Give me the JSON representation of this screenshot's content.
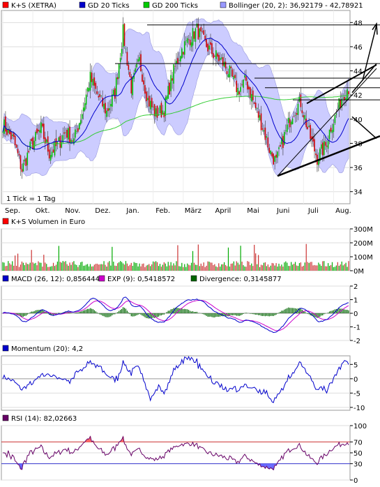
{
  "chart_data": [
    {
      "type": "candlestick",
      "legend": [
        {
          "label": "K+S (XETRA)",
          "color": "#ff0000"
        },
        {
          "label": "GD 20 Ticks",
          "color": "#0000cc"
        },
        {
          "label": "GD 200 Ticks",
          "color": "#00cc00"
        },
        {
          "label": "Bollinger (20, 2): 36,92179 - 42,78921",
          "color": "#9999ff"
        }
      ],
      "months": [
        "Sep.",
        "Okt.",
        "Nov.",
        "Dez.",
        "Jan.",
        "Feb.",
        "März",
        "April",
        "Mai",
        "Juni",
        "Juli",
        "Aug."
      ],
      "yticks": [
        "34",
        "36",
        "38",
        "40",
        "42",
        "44",
        "46",
        "48"
      ],
      "ylim": [
        33,
        49
      ],
      "note": "1 Tick = 1 Tag",
      "close_anchors": [
        [
          0,
          39.6
        ],
        [
          8,
          38.2
        ],
        [
          14,
          35.8
        ],
        [
          20,
          37.6
        ],
        [
          28,
          39.2
        ],
        [
          34,
          37.2
        ],
        [
          40,
          37.8
        ],
        [
          46,
          39.0
        ],
        [
          52,
          38.2
        ],
        [
          58,
          40.6
        ],
        [
          64,
          43.4
        ],
        [
          70,
          41.8
        ],
        [
          76,
          40.6
        ],
        [
          82,
          42.2
        ],
        [
          88,
          47.2
        ],
        [
          94,
          42.6
        ],
        [
          100,
          44.8
        ],
        [
          106,
          41.6
        ],
        [
          112,
          40.4
        ],
        [
          118,
          40.8
        ],
        [
          124,
          43.6
        ],
        [
          130,
          45.6
        ],
        [
          136,
          46.6
        ],
        [
          142,
          47.4
        ],
        [
          148,
          46.2
        ],
        [
          154,
          45.4
        ],
        [
          160,
          44.8
        ],
        [
          166,
          43.8
        ],
        [
          172,
          42.4
        ],
        [
          178,
          43.2
        ],
        [
          184,
          41.2
        ],
        [
          190,
          39.4
        ],
        [
          196,
          37.2
        ],
        [
          200,
          36.4
        ],
        [
          206,
          38.6
        ],
        [
          212,
          40.6
        ],
        [
          218,
          41.4
        ],
        [
          224,
          38.8
        ],
        [
          230,
          36.8
        ],
        [
          236,
          37.8
        ],
        [
          240,
          39.4
        ],
        [
          244,
          40.4
        ],
        [
          248,
          41.8
        ],
        [
          252,
          42.6
        ]
      ]
    },
    {
      "type": "bar",
      "title": "K+S Volumen in Euro",
      "yticks": [
        "0M",
        "100M",
        "200M",
        "300M"
      ],
      "ylim": [
        0,
        300
      ]
    },
    {
      "type": "line",
      "legend": [
        {
          "label": "MACD (26, 12): 0,8564449",
          "color": "#0000cc"
        },
        {
          "label": "EXP (9): 0,5418572",
          "color": "#cc00cc"
        },
        {
          "label": "Divergence: 0,3145877",
          "color": "#006600"
        }
      ],
      "yticks": [
        "-2",
        "-1",
        "0",
        "1",
        "2"
      ],
      "ylim": [
        -2,
        2
      ]
    },
    {
      "type": "line",
      "legend": [
        {
          "label": "Momentum (20): 4,2",
          "color": "#0000cc"
        }
      ],
      "yticks": [
        "-10",
        "-5",
        "0",
        "5"
      ],
      "ylim": [
        -11,
        8
      ]
    },
    {
      "type": "line",
      "legend": [
        {
          "label": "RSI (14): 82,02663",
          "color": "#660066"
        }
      ],
      "yticks": [
        "0",
        "30",
        "50",
        "70",
        "100"
      ],
      "ylim": [
        0,
        100
      ],
      "levels": [
        30,
        70
      ]
    }
  ]
}
